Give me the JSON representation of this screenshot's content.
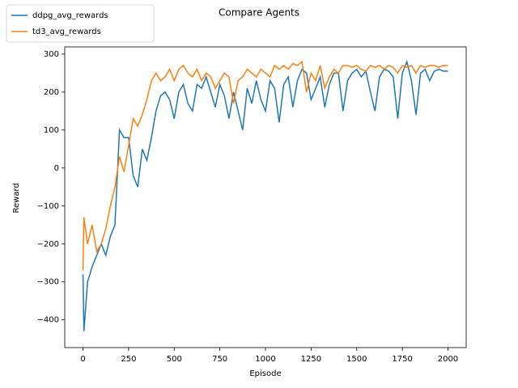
{
  "chart_data": {
    "type": "line",
    "title": "Compare Agents",
    "xlabel": "Episode",
    "ylabel": "Reward",
    "legend": "upper left",
    "xlim": [
      -100,
      2100
    ],
    "xticks": [
      0,
      250,
      500,
      750,
      1000,
      1250,
      1500,
      1750,
      2000
    ],
    "ylim": [
      -473,
      319
    ],
    "yticks": [
      {
        "value": -400,
        "label": "−400"
      },
      {
        "value": -300,
        "label": "−300"
      },
      {
        "value": -200,
        "label": "−200"
      },
      {
        "value": -100,
        "label": "−100"
      },
      0,
      100,
      200,
      300
    ],
    "x": [
      0,
      5,
      25,
      50,
      75,
      100,
      125,
      150,
      175,
      200,
      225,
      250,
      275,
      300,
      325,
      350,
      375,
      400,
      425,
      450,
      475,
      500,
      525,
      550,
      575,
      600,
      625,
      650,
      675,
      700,
      725,
      750,
      775,
      800,
      825,
      850,
      875,
      900,
      925,
      950,
      975,
      1000,
      1025,
      1050,
      1075,
      1100,
      1125,
      1150,
      1175,
      1200,
      1225,
      1250,
      1275,
      1300,
      1325,
      1350,
      1375,
      1400,
      1425,
      1450,
      1475,
      1500,
      1525,
      1550,
      1575,
      1600,
      1625,
      1650,
      1675,
      1700,
      1725,
      1750,
      1775,
      1800,
      1825,
      1850,
      1875,
      1900,
      1925,
      1950,
      1975,
      2000
    ],
    "series": [
      {
        "name": "ddpg_avg_rewards",
        "color": "#1f77b4",
        "values": [
          -280,
          -430,
          -300,
          -260,
          -230,
          -200,
          -230,
          -180,
          -150,
          100,
          80,
          80,
          -20,
          -50,
          50,
          20,
          80,
          150,
          190,
          200,
          180,
          130,
          200,
          220,
          170,
          150,
          220,
          210,
          240,
          200,
          160,
          220,
          190,
          130,
          200,
          150,
          100,
          210,
          170,
          230,
          180,
          150,
          230,
          210,
          120,
          220,
          240,
          160,
          230,
          260,
          250,
          180,
          210,
          240,
          160,
          220,
          250,
          250,
          150,
          230,
          250,
          260,
          240,
          255,
          200,
          150,
          240,
          260,
          255,
          240,
          130,
          250,
          280,
          230,
          140,
          250,
          260,
          230,
          255,
          260,
          255,
          255
        ]
      },
      {
        "name": "td3_avg_rewards",
        "color": "#ff7f0e",
        "values": [
          -270,
          -130,
          -200,
          -150,
          -220,
          -200,
          -160,
          -100,
          -50,
          30,
          -10,
          60,
          130,
          110,
          140,
          180,
          230,
          250,
          230,
          240,
          260,
          230,
          260,
          270,
          250,
          240,
          260,
          230,
          250,
          240,
          210,
          230,
          250,
          240,
          170,
          230,
          240,
          260,
          250,
          240,
          260,
          250,
          240,
          270,
          260,
          270,
          260,
          275,
          270,
          280,
          200,
          250,
          230,
          270,
          210,
          240,
          260,
          250,
          270,
          270,
          265,
          270,
          260,
          255,
          270,
          265,
          270,
          260,
          270,
          265,
          250,
          270,
          265,
          270,
          250,
          270,
          265,
          270,
          270,
          265,
          270,
          270
        ]
      }
    ]
  }
}
